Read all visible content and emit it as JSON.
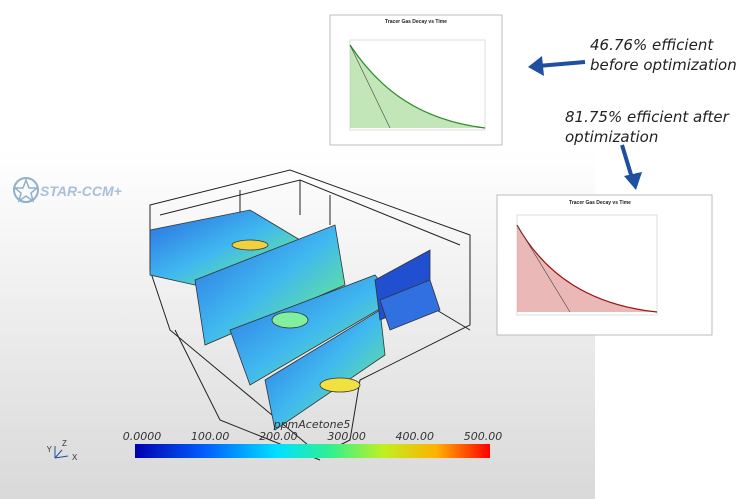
{
  "logo": "STAR-CCM+",
  "annotations": [
    {
      "lines": [
        "46.76% efficient",
        "before optimization"
      ]
    },
    {
      "lines": [
        "81.75% efficient after",
        "optimization"
      ]
    }
  ],
  "charts": [
    {
      "title": "Tracer Gas Decay vs Time"
    },
    {
      "title": "Tracer Gas Decay vs Time"
    }
  ],
  "colorbar": {
    "title": "ppmAcetone5",
    "labels": [
      "0.0000",
      "100.00",
      "200.00",
      "300.00",
      "400.00",
      "500.00"
    ]
  },
  "axes_triad": {
    "x": "X",
    "y": "Y",
    "z": "Z"
  }
}
